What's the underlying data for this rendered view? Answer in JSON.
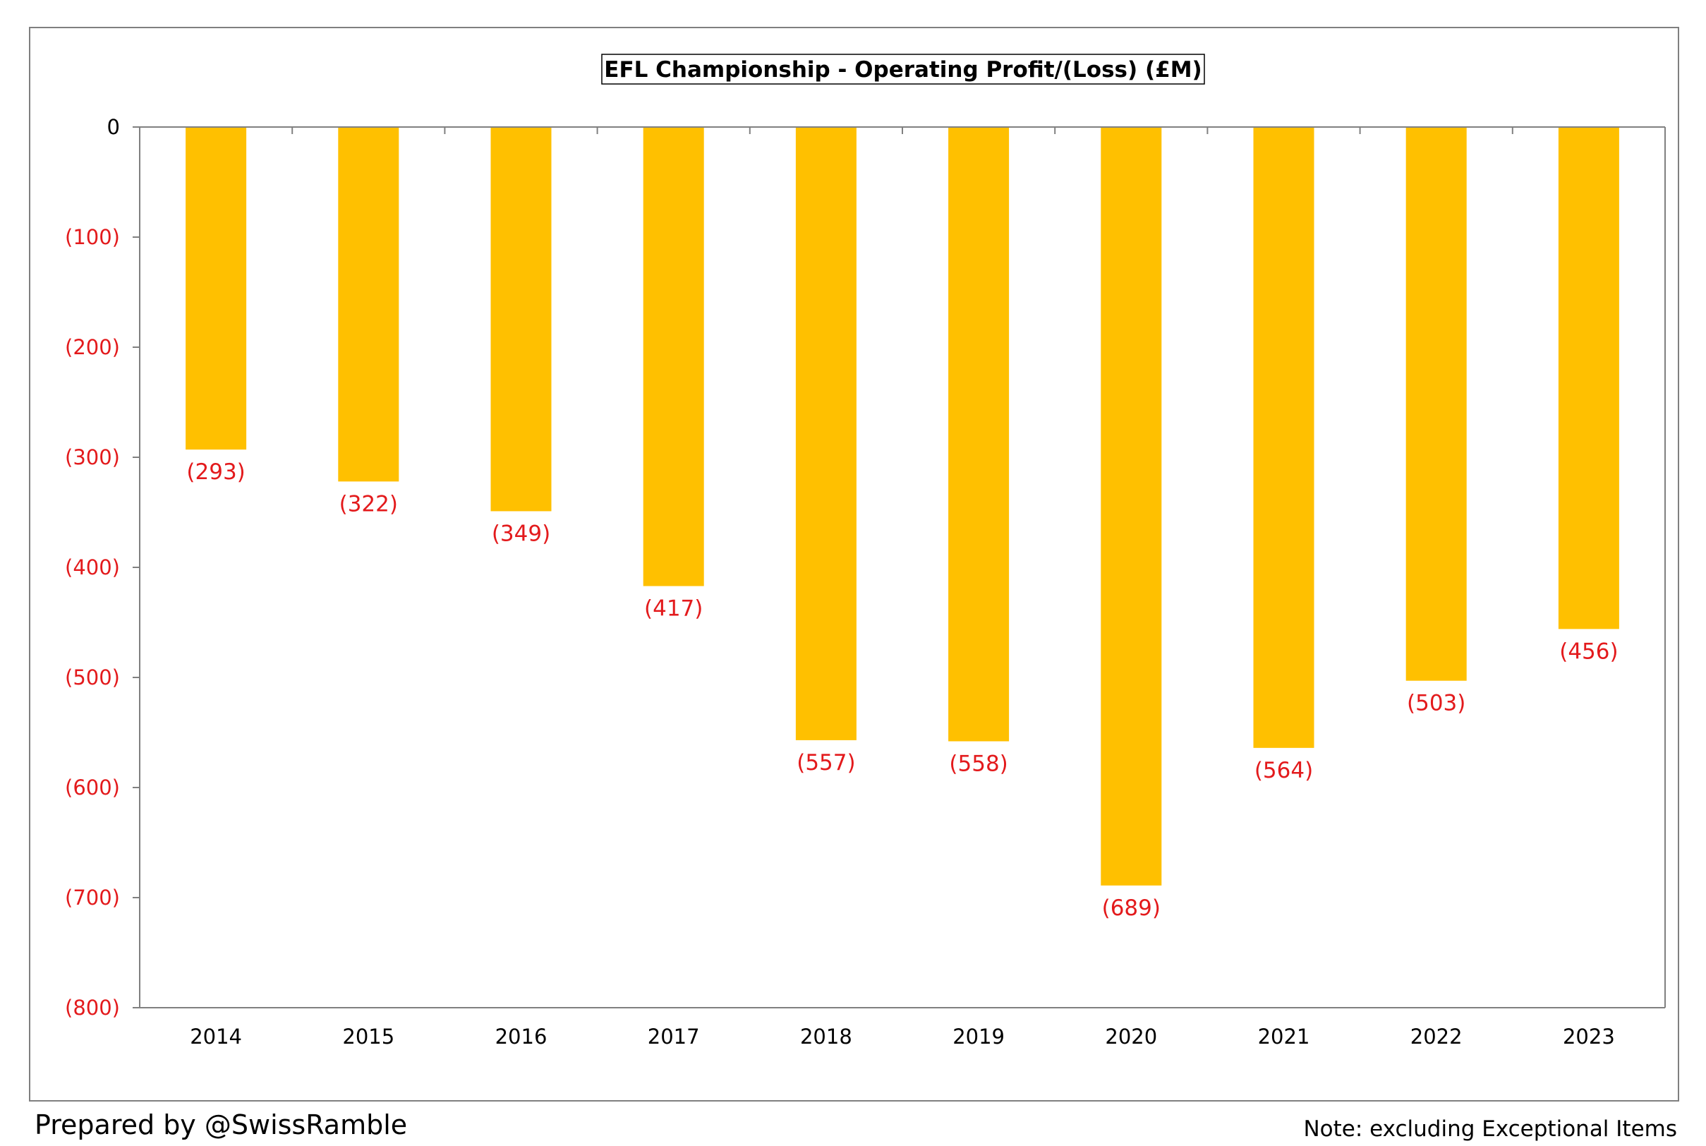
{
  "chart_data": {
    "type": "bar",
    "title": "EFL Championship - Operating Profit/(Loss) (£M)",
    "categories": [
      "2014",
      "2015",
      "2016",
      "2017",
      "2018",
      "2019",
      "2020",
      "2021",
      "2022",
      "2023"
    ],
    "values": [
      -293,
      -322,
      -349,
      -417,
      -557,
      -558,
      -689,
      -564,
      -503,
      -456
    ],
    "data_labels": [
      "(293)",
      "(322)",
      "(349)",
      "(417)",
      "(557)",
      "(558)",
      "(689)",
      "(564)",
      "(503)",
      "(456)"
    ],
    "ylim": [
      -800,
      0
    ],
    "yticks": [
      0,
      -100,
      -200,
      -300,
      -400,
      -500,
      -600,
      -700,
      -800
    ],
    "ytick_labels": [
      "0",
      "(100)",
      "(200)",
      "(300)",
      "(400)",
      "(500)",
      "(600)",
      "(700)",
      "(800)"
    ],
    "xlabel": "",
    "ylabel": "",
    "grid": false,
    "legend": "none",
    "colors": {
      "bar": "#ffc000",
      "negative_label": "#e31a1c",
      "axis": "#808080",
      "text": "#000000"
    }
  },
  "footer": {
    "credit": "Prepared by @SwissRamble",
    "note": "Note: excluding Exceptional Items"
  }
}
